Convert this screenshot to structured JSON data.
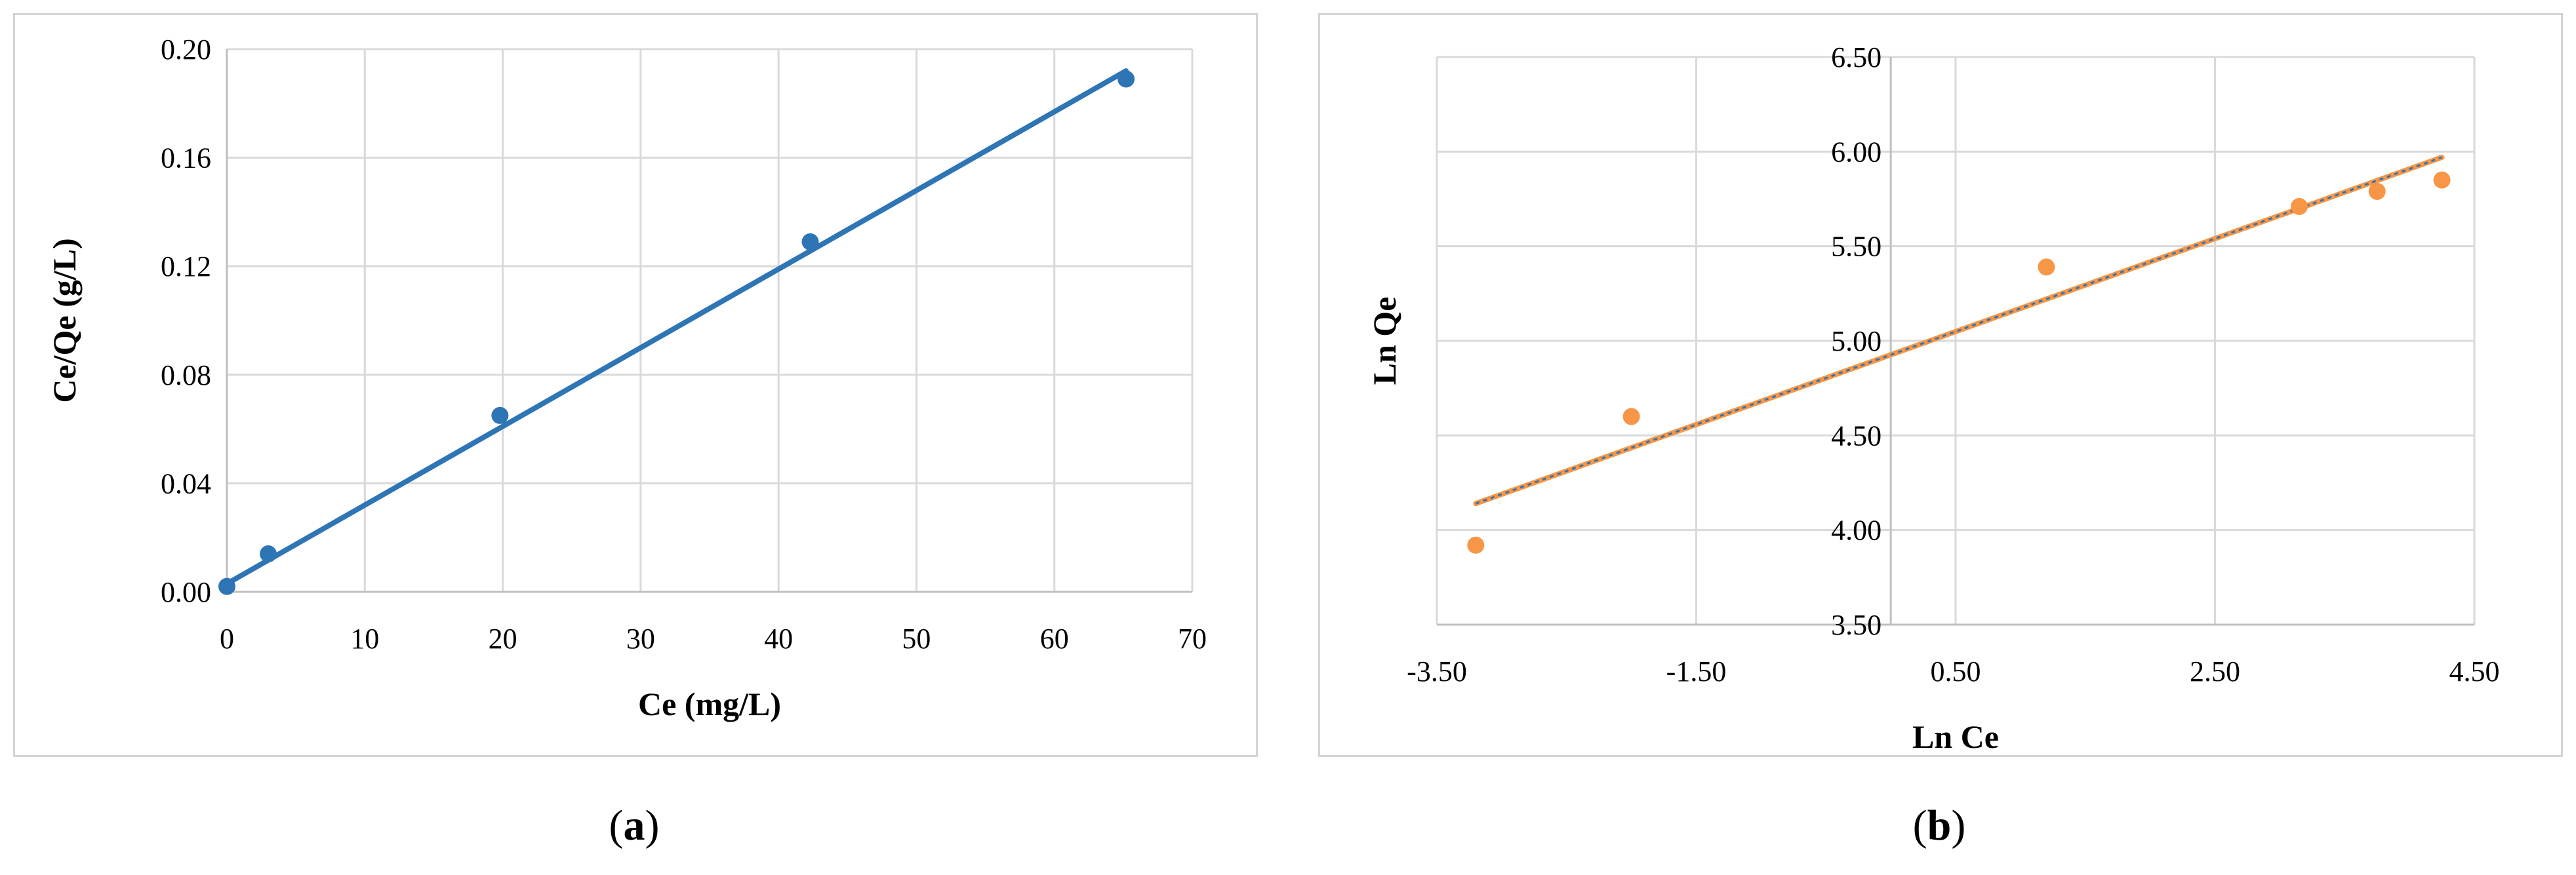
{
  "captions": {
    "a": "a",
    "b": "b"
  },
  "chart_data": [
    {
      "type": "scatter",
      "panel": "a",
      "xlabel": "Ce (mg/L)",
      "ylabel": "Ce/Qe (g/L)",
      "xlim": [
        0,
        70
      ],
      "ylim": [
        0,
        0.2
      ],
      "x_ticks": [
        "0",
        "10",
        "20",
        "30",
        "40",
        "50",
        "60",
        "70"
      ],
      "y_ticks": [
        "0.00",
        "0.04",
        "0.08",
        "0.12",
        "0.16",
        "0.20"
      ],
      "grid": true,
      "series": [
        {
          "points": [
            [
              0,
              0.002
            ],
            [
              3,
              0.014
            ],
            [
              19.8,
              0.065
            ],
            [
              42.3,
              0.129
            ],
            [
              65.2,
              0.189
            ]
          ],
          "color": "#2e75b6"
        }
      ],
      "trendline": {
        "type": "linear",
        "from": [
          0,
          0.003
        ],
        "to": [
          65.2,
          0.192
        ],
        "color": "#2e75b6"
      }
    },
    {
      "type": "scatter",
      "panel": "b",
      "xlabel": "Ln Ce",
      "ylabel": "Ln Qe",
      "xlim": [
        -3.5,
        4.5
      ],
      "ylim": [
        3.5,
        6.5
      ],
      "x_ticks": [
        "-3.50",
        "-1.50",
        "0.50",
        "2.50",
        "4.50"
      ],
      "y_ticks": [
        "3.50",
        "4.00",
        "4.50",
        "5.00",
        "5.50",
        "6.00",
        "6.50"
      ],
      "y_axis_crosses_x": 0,
      "grid": true,
      "series": [
        {
          "points": [
            [
              -3.2,
              3.92
            ],
            [
              -2.0,
              4.6
            ],
            [
              1.2,
              5.39
            ],
            [
              3.15,
              5.71
            ],
            [
              3.75,
              5.79
            ],
            [
              4.25,
              5.85
            ]
          ],
          "color": "#f79646"
        }
      ],
      "trendline": {
        "type": "linear",
        "from": [
          -3.2,
          4.14
        ],
        "to": [
          4.25,
          5.97
        ],
        "color": "#f79646",
        "overlay_color": "#2e75b6"
      }
    }
  ]
}
